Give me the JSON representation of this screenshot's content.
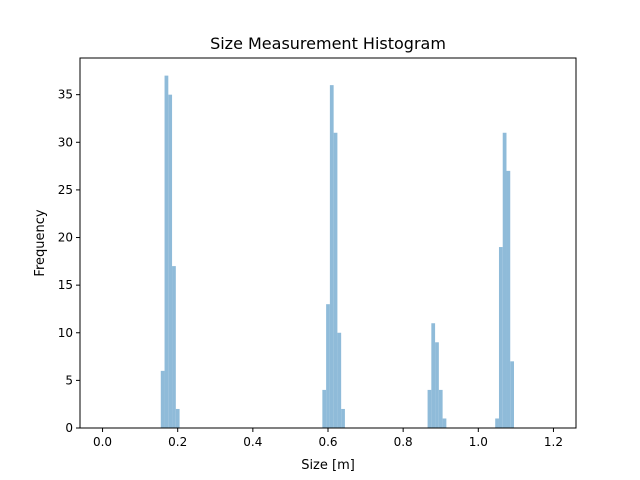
{
  "chart_data": {
    "type": "bar",
    "title": "Size Measurement Histogram",
    "xlabel": "Size [m]",
    "ylabel": "Frequency",
    "xlim": [
      -0.06,
      1.26
    ],
    "ylim": [
      0,
      38.85
    ],
    "xticks": [
      "0.0",
      "0.2",
      "0.4",
      "0.6",
      "0.8",
      "1.0",
      "1.2"
    ],
    "xtick_values": [
      0.0,
      0.2,
      0.4,
      0.6,
      0.8,
      1.0,
      1.2
    ],
    "yticks": [
      "0",
      "5",
      "10",
      "15",
      "20",
      "25",
      "30",
      "35"
    ],
    "ytick_values": [
      0,
      5,
      10,
      15,
      20,
      25,
      30,
      35
    ],
    "bin_width": 0.01,
    "bar_color": "#8fbbd9",
    "grid": false,
    "bins": [
      {
        "x": 0.155,
        "value": 6
      },
      {
        "x": 0.165,
        "value": 37
      },
      {
        "x": 0.175,
        "value": 35
      },
      {
        "x": 0.185,
        "value": 17
      },
      {
        "x": 0.195,
        "value": 2
      },
      {
        "x": 0.585,
        "value": 4
      },
      {
        "x": 0.595,
        "value": 13
      },
      {
        "x": 0.605,
        "value": 36
      },
      {
        "x": 0.615,
        "value": 31
      },
      {
        "x": 0.625,
        "value": 10
      },
      {
        "x": 0.635,
        "value": 2
      },
      {
        "x": 0.865,
        "value": 4
      },
      {
        "x": 0.875,
        "value": 11
      },
      {
        "x": 0.885,
        "value": 9
      },
      {
        "x": 0.895,
        "value": 4
      },
      {
        "x": 0.905,
        "value": 1
      },
      {
        "x": 1.045,
        "value": 1
      },
      {
        "x": 1.055,
        "value": 19
      },
      {
        "x": 1.065,
        "value": 31
      },
      {
        "x": 1.075,
        "value": 27
      },
      {
        "x": 1.085,
        "value": 7
      }
    ]
  }
}
